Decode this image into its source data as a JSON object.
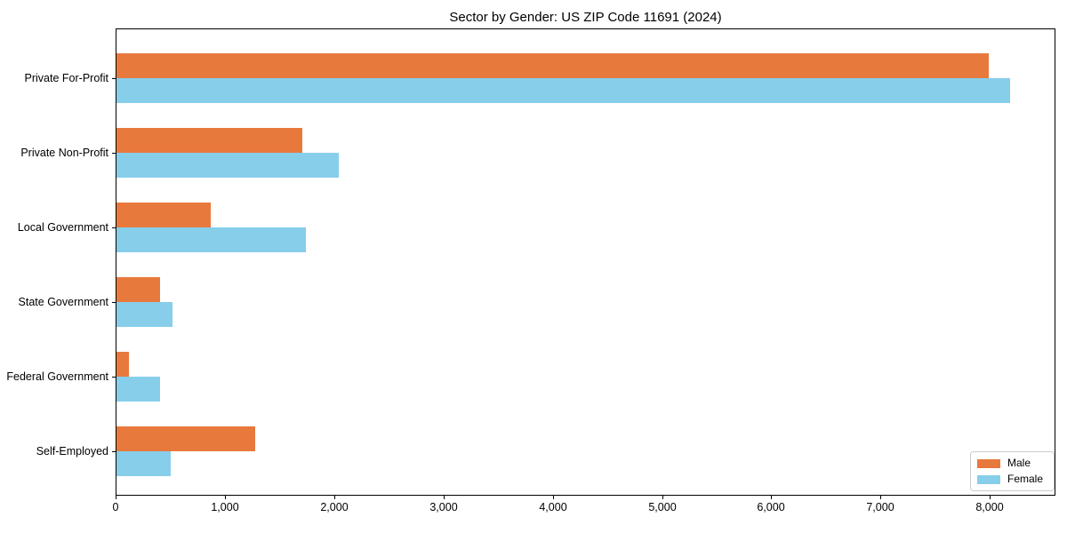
{
  "figure": {
    "background": "#ffffff",
    "axis_color": "#000000",
    "legend_border_color": "#cccccc"
  },
  "chart_data": {
    "type": "bar",
    "orientation": "horizontal",
    "title": "Sector by Gender: US ZIP Code 11691 (2024)",
    "categories": [
      "Private For-Profit",
      "Private Non-Profit",
      "Local Government",
      "State Government",
      "Federal Government",
      "Self-Employed"
    ],
    "series": [
      {
        "name": "Male",
        "color": "#e8793d",
        "values": [
          7980,
          1700,
          860,
          400,
          115,
          1270
        ]
      },
      {
        "name": "Female",
        "color": "#87ceeb",
        "values": [
          8180,
          2030,
          1730,
          510,
          400,
          500
        ]
      }
    ],
    "xlabel": "",
    "ylabel": "",
    "xlim": [
      0,
      8600
    ],
    "x_ticks": [
      0,
      1000,
      2000,
      3000,
      4000,
      5000,
      6000,
      7000,
      8000
    ],
    "x_tick_labels": [
      "0",
      "1,000",
      "2,000",
      "3,000",
      "4,000",
      "5,000",
      "6,000",
      "7,000",
      "8,000"
    ],
    "grid": false,
    "legend": {
      "position": "lower right",
      "entries": [
        "Male",
        "Female"
      ]
    }
  }
}
